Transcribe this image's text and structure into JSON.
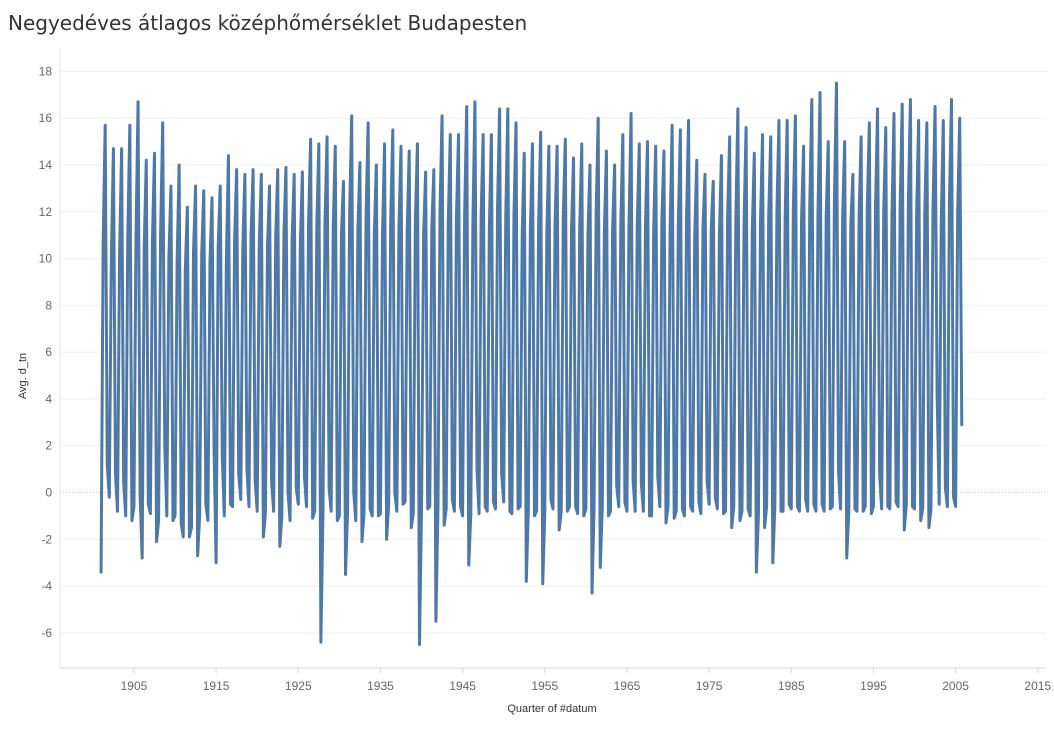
{
  "chart_data": {
    "type": "line",
    "title": "Negyedéves átlagos középhőmérséklet Budapesten",
    "xlabel": "Quarter of #datum",
    "ylabel": "Avg. d_tn",
    "xlim": [
      1896,
      2016
    ],
    "ylim": [
      -7.5,
      19
    ],
    "x_ticks": [
      1905,
      1915,
      1925,
      1935,
      1945,
      1955,
      1965,
      1975,
      1985,
      1995,
      2005,
      2015
    ],
    "y_ticks": [
      -6,
      -4,
      -2,
      0,
      2,
      4,
      6,
      8,
      10,
      12,
      14,
      16,
      18
    ],
    "zero_line": true,
    "line_color": "#4e79a7",
    "series": [
      {
        "name": "Avg. d_tn",
        "start_year": 1901,
        "quarter_step": 0.25,
        "values": [
          -3.4,
          10.6,
          15.7,
          1.2,
          -0.2,
          10.0,
          14.7,
          0.8,
          -0.8,
          10.2,
          14.7,
          0.4,
          -1.0,
          11.0,
          15.7,
          -1.2,
          -0.6,
          11.0,
          16.7,
          -0.1,
          -2.8,
          10.5,
          14.2,
          -0.5,
          -0.9,
          10.8,
          14.5,
          -2.1,
          -1.2,
          11.2,
          15.8,
          2.0,
          -1.0,
          10.0,
          13.1,
          -1.2,
          -1.0,
          9.8,
          14.0,
          -1.3,
          -1.9,
          9.5,
          12.2,
          -1.9,
          -1.5,
          10.3,
          13.1,
          -2.7,
          -1.0,
          10.2,
          12.9,
          -0.5,
          -1.2,
          9.8,
          12.6,
          1.8,
          -3.0,
          10.5,
          13.1,
          1.5,
          -1.0,
          10.0,
          14.4,
          -0.5,
          -0.6,
          10.8,
          13.8,
          0.8,
          -0.3,
          10.5,
          13.6,
          1.0,
          -0.6,
          11.0,
          13.8,
          0.5,
          -0.8,
          10.6,
          13.6,
          -1.9,
          -0.9,
          10.5,
          13.1,
          0.5,
          -0.8,
          10.9,
          13.8,
          -2.3,
          -1.0,
          11.0,
          13.9,
          0.0,
          -1.2,
          10.8,
          13.6,
          0.2,
          -0.5,
          10.6,
          13.7,
          0.7,
          -0.6,
          11.5,
          15.1,
          -1.1,
          -0.8,
          11.3,
          14.9,
          -6.4,
          -1.0,
          11.5,
          15.2,
          0.2,
          -0.8,
          11.3,
          14.8,
          -1.2,
          -1.0,
          11.0,
          13.3,
          -3.5,
          -0.8,
          12.0,
          16.1,
          0.0,
          -1.2,
          11.2,
          14.1,
          -2.1,
          -0.9,
          11.8,
          15.8,
          -0.7,
          -1.0,
          11.0,
          14.0,
          -1.0,
          -0.9,
          11.0,
          14.9,
          -2.0,
          -0.5,
          11.7,
          15.5,
          0.0,
          -0.8,
          11.3,
          14.8,
          -0.5,
          -0.4,
          11.1,
          14.6,
          -1.5,
          -0.9,
          11.6,
          14.9,
          -6.5,
          -0.7,
          11.0,
          13.7,
          -0.7,
          -0.6,
          11.3,
          13.8,
          -5.5,
          -0.6,
          12.1,
          16.1,
          -1.4,
          -0.7,
          11.5,
          15.3,
          -0.3,
          -0.8,
          11.8,
          15.3,
          -0.6,
          -1.0,
          12.0,
          16.5,
          -3.1,
          -0.9,
          11.5,
          16.7,
          1.0,
          -0.9,
          11.8,
          15.3,
          -0.6,
          -0.8,
          11.2,
          15.3,
          -0.4,
          -0.7,
          12.2,
          16.4,
          0.8,
          -0.4,
          11.8,
          16.4,
          -0.8,
          -0.9,
          11.9,
          15.8,
          -0.7,
          -0.6,
          11.0,
          14.5,
          -3.8,
          -0.7,
          11.3,
          14.9,
          -1.0,
          -0.8,
          11.5,
          15.4,
          -3.9,
          -0.9,
          11.1,
          14.8,
          -0.3,
          -0.7,
          11.5,
          14.8,
          -1.6,
          -0.8,
          11.8,
          15.1,
          -0.8,
          -0.6,
          11.2,
          14.3,
          -0.6,
          -0.9,
          11.3,
          14.9,
          -1.0,
          -0.7,
          11.0,
          14.0,
          -4.3,
          -0.6,
          11.9,
          16.0,
          -3.2,
          -0.6,
          11.1,
          14.6,
          -1.0,
          -0.8,
          11.2,
          14.0,
          0.3,
          -0.6,
          11.4,
          15.3,
          -0.4,
          -0.8,
          11.5,
          16.2,
          0.5,
          -0.8,
          11.4,
          14.9,
          0.4,
          -0.8,
          11.4,
          15.0,
          -1.0,
          -1.0,
          11.2,
          14.8,
          0.7,
          -0.6,
          11.6,
          14.6,
          -1.3,
          -0.6,
          11.2,
          15.7,
          -1.1,
          -0.8,
          11.4,
          15.5,
          -0.7,
          -1.0,
          11.7,
          15.9,
          -0.6,
          -0.8,
          11.0,
          14.2,
          -0.4,
          -0.9,
          11.3,
          13.6,
          0.5,
          -0.5,
          11.2,
          13.3,
          -0.2,
          -0.7,
          11.0,
          14.4,
          -0.9,
          -0.8,
          11.8,
          15.2,
          -1.5,
          -0.6,
          11.6,
          16.4,
          -1.2,
          -0.8,
          11.5,
          15.6,
          -0.7,
          -1.0,
          11.2,
          14.5,
          -3.4,
          -1.0,
          11.5,
          15.3,
          -1.5,
          -0.6,
          11.8,
          15.2,
          -3.0,
          -0.6,
          12.0,
          15.9,
          -0.8,
          -0.8,
          11.7,
          15.9,
          -0.5,
          -0.7,
          12.1,
          16.1,
          -0.6,
          -0.8,
          11.7,
          14.8,
          -0.3,
          -0.8,
          12.3,
          16.8,
          -0.5,
          -0.8,
          12.0,
          17.1,
          -0.5,
          -0.8,
          11.8,
          15.0,
          -0.7,
          -0.6,
          12.5,
          17.5,
          0.9,
          -0.7,
          11.8,
          15.0,
          -2.8,
          -0.8,
          11.5,
          13.6,
          -0.7,
          -0.8,
          11.8,
          15.2,
          -0.8,
          -0.6,
          12.2,
          15.8,
          -0.9,
          -0.6,
          12.2,
          16.4,
          0.8,
          -0.7,
          12.0,
          15.6,
          -0.6,
          -0.7,
          11.8,
          16.2,
          -0.4,
          -0.6,
          12.2,
          16.6,
          -1.6,
          -0.5,
          12.4,
          16.8,
          -0.6,
          -0.7,
          11.9,
          15.9,
          -1.2,
          -0.7,
          12.0,
          15.8,
          -1.5,
          -0.7,
          12.2,
          16.5,
          4.2,
          -0.5,
          11.5,
          15.9,
          0.2,
          -0.6,
          12.5,
          16.8,
          -0.2,
          -0.6,
          12.0,
          16.0,
          2.9
        ]
      }
    ]
  }
}
